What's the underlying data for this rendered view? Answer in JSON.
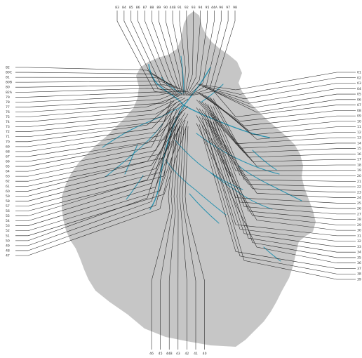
{
  "map": {
    "colors": {
      "background": "#ffffff",
      "land": "#c6c6c6",
      "river": "#2a93b0",
      "leader": "#222222",
      "label": "#333333"
    },
    "labels": {
      "top": [
        "83",
        "84",
        "85",
        "86",
        "87",
        "88",
        "89",
        "90",
        "44B",
        "91",
        "92",
        "93",
        "94",
        "95",
        "44A",
        "96",
        "97",
        "98"
      ],
      "left": [
        "82",
        "80C",
        "81",
        "80B",
        "80",
        "82A",
        "79",
        "78",
        "77",
        "76",
        "75",
        "74",
        "73",
        "72",
        "71",
        "70",
        "69",
        "68",
        "67",
        "66",
        "65",
        "64",
        "63",
        "62",
        "61",
        "60",
        "59",
        "58",
        "57",
        "56",
        "55",
        "54",
        "53",
        "52",
        "51",
        "50",
        "49",
        "48",
        "47"
      ],
      "right": [
        "01",
        "02",
        "03",
        "04",
        "05",
        "06",
        "07",
        "08",
        "09",
        "10",
        "11",
        "12",
        "13",
        "14",
        "15",
        "16",
        "17",
        "18",
        "19",
        "20",
        "21",
        "22",
        "23",
        "24",
        "25",
        "26",
        "27",
        "28",
        "29",
        "30",
        "31",
        "32",
        "33",
        "34",
        "35",
        "36",
        "37",
        "38",
        "39"
      ],
      "bottom": [
        "46",
        "45",
        "44B",
        "43",
        "42",
        "41",
        "40"
      ]
    }
  }
}
